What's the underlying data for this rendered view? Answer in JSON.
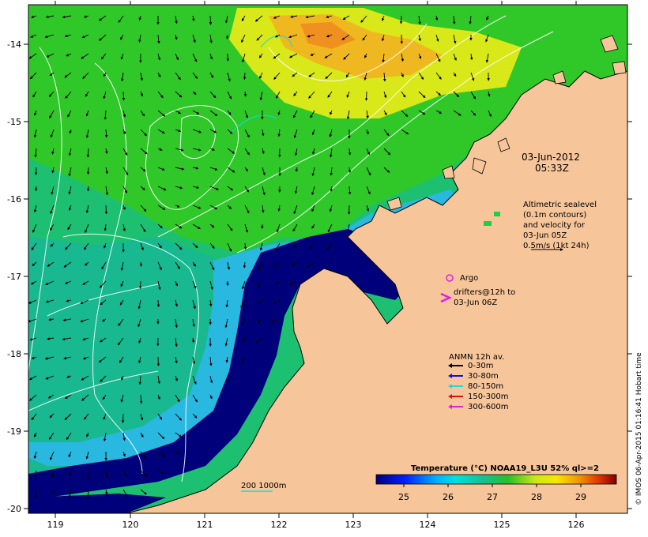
{
  "map": {
    "lon_ticks": [
      "119",
      "120",
      "121",
      "122",
      "123",
      "124",
      "125",
      "126"
    ],
    "lat_ticks": [
      "-14",
      "-15",
      "-16",
      "-17",
      "-18",
      "-19",
      "-20"
    ],
    "timestamp": {
      "line1": "03-Jun-2012",
      "line2": "05:33Z"
    },
    "altimetry_note": [
      "Altimetric sealevel",
      "(0.1m contours)",
      "and velocity for",
      "03-Jun 05Z",
      "0.5m/s (1kt 24h)"
    ],
    "argo_label": "Argo",
    "drifters_label": [
      "drifters@12h to",
      "03-Jun 06Z"
    ],
    "anmn_title": "ANMN 12h av.",
    "anmn_legend": [
      {
        "label": "0-30m",
        "color": "#000000"
      },
      {
        "label": "30-80m",
        "color": "#1010e0"
      },
      {
        "label": "80-150m",
        "color": "#20d8d8"
      },
      {
        "label": "150-300m",
        "color": "#e01010"
      },
      {
        "label": "300-600m",
        "color": "#e020e0"
      }
    ],
    "scale_bar_label": "200  1000m",
    "colorbar": {
      "title": "Temperature (°C) NOAA19_L3U 52% ql>=2",
      "ticks": [
        "25",
        "26",
        "27",
        "28",
        "29"
      ]
    },
    "credit": "© IMOS 06-Apr-2015 01:16:41 Hobart time",
    "colors": {
      "land": "#f7c59a",
      "deep_blue": "#00007a",
      "green": "#28c028",
      "teal": "#18c08c",
      "yellow": "#e8e818",
      "orange": "#f0a020"
    }
  }
}
